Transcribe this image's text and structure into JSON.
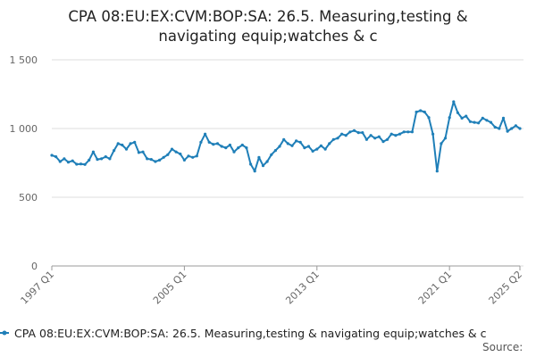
{
  "chart_data": {
    "type": "line",
    "title_line1": "CPA 08:EU:EX:CVM:BOP:SA: 26.5. Measuring,testing &",
    "title_line2": "navigating equip;watches & c",
    "xlabel": "",
    "ylabel": "",
    "x_ticks": [
      "1997 Q1",
      "2005 Q1",
      "2013 Q1",
      "2021 Q1",
      "2025 Q2"
    ],
    "y_ticks": [
      "0",
      "500",
      "1 000",
      "1 500"
    ],
    "ylim": [
      0,
      1500
    ],
    "grid": "horizontal",
    "legend_position": "bottom",
    "source_label": "Source:",
    "series": [
      {
        "name": "CPA 08:EU:EX:CVM:BOP:SA: 26.5. Measuring,testing & navigating equip;watches & c",
        "color": "#1f7fb8",
        "start_quarter": "1997 Q1",
        "values": [
          805,
          795,
          760,
          780,
          755,
          765,
          740,
          742,
          738,
          770,
          830,
          775,
          780,
          795,
          780,
          840,
          890,
          880,
          850,
          890,
          900,
          825,
          830,
          780,
          775,
          760,
          770,
          790,
          810,
          850,
          830,
          815,
          770,
          800,
          790,
          800,
          900,
          960,
          900,
          885,
          890,
          870,
          860,
          880,
          830,
          860,
          880,
          860,
          740,
          690,
          790,
          730,
          760,
          810,
          840,
          870,
          920,
          890,
          875,
          910,
          900,
          860,
          870,
          835,
          850,
          875,
          850,
          890,
          920,
          930,
          960,
          950,
          975,
          985,
          970,
          970,
          920,
          950,
          930,
          940,
          905,
          920,
          960,
          950,
          960,
          975,
          975,
          975,
          1120,
          1130,
          1120,
          1080,
          960,
          690,
          890,
          930,
          1080,
          1195,
          1115,
          1075,
          1090,
          1050,
          1045,
          1040,
          1075,
          1060,
          1045,
          1010,
          1000,
          1075,
          980,
          1000,
          1020,
          1000
        ]
      }
    ]
  }
}
